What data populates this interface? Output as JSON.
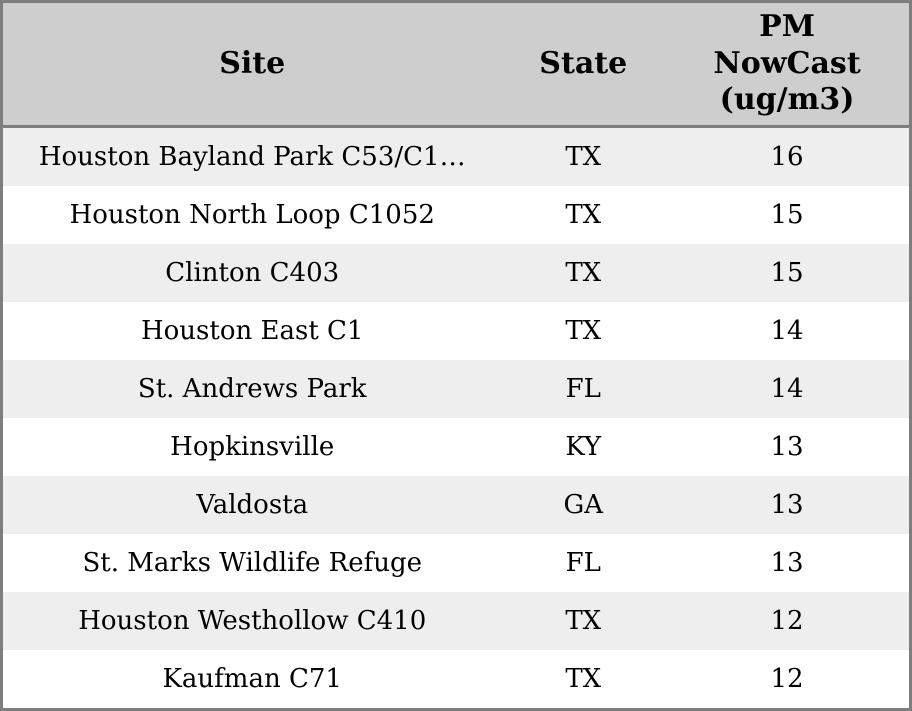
{
  "colors": {
    "header_bg": "#cecece",
    "row_stripe_bg": "#eeeeee",
    "row_bg": "#ffffff",
    "border": "#7d7d7d",
    "text": "#000000"
  },
  "table": {
    "columns": [
      {
        "label": "Site"
      },
      {
        "label": "State"
      },
      {
        "label": "PM\nNowCast\n(ug/m3)"
      }
    ],
    "rows": [
      {
        "site": "Houston Bayland Park C53/C1…",
        "state": "TX",
        "pm_nowcast": "16"
      },
      {
        "site": "Houston North Loop C1052",
        "state": "TX",
        "pm_nowcast": "15"
      },
      {
        "site": "Clinton C403",
        "state": "TX",
        "pm_nowcast": "15"
      },
      {
        "site": "Houston East C1",
        "state": "TX",
        "pm_nowcast": "14"
      },
      {
        "site": "St. Andrews Park",
        "state": "FL",
        "pm_nowcast": "14"
      },
      {
        "site": "Hopkinsville",
        "state": "KY",
        "pm_nowcast": "13"
      },
      {
        "site": "Valdosta",
        "state": "GA",
        "pm_nowcast": "13"
      },
      {
        "site": "St. Marks Wildlife Refuge",
        "state": "FL",
        "pm_nowcast": "13"
      },
      {
        "site": "Houston Westhollow C410",
        "state": "TX",
        "pm_nowcast": "12"
      },
      {
        "site": "Kaufman C71",
        "state": "TX",
        "pm_nowcast": "12"
      }
    ]
  },
  "chart_data": {
    "type": "table",
    "title": "",
    "columns": [
      "Site",
      "State",
      "PM NowCast (ug/m3)"
    ],
    "rows": [
      [
        "Houston Bayland Park C53/C1…",
        "TX",
        16
      ],
      [
        "Houston North Loop C1052",
        "TX",
        15
      ],
      [
        "Clinton C403",
        "TX",
        15
      ],
      [
        "Houston East C1",
        "TX",
        14
      ],
      [
        "St. Andrews Park",
        "FL",
        14
      ],
      [
        "Hopkinsville",
        "KY",
        13
      ],
      [
        "Valdosta",
        "GA",
        13
      ],
      [
        "St. Marks Wildlife Refuge",
        "FL",
        13
      ],
      [
        "Houston Westhollow C410",
        "TX",
        12
      ],
      [
        "Kaufman C71",
        "TX",
        12
      ]
    ],
    "layout": {
      "zebra_striping": true,
      "header_position": "top",
      "alignment": "center"
    }
  }
}
